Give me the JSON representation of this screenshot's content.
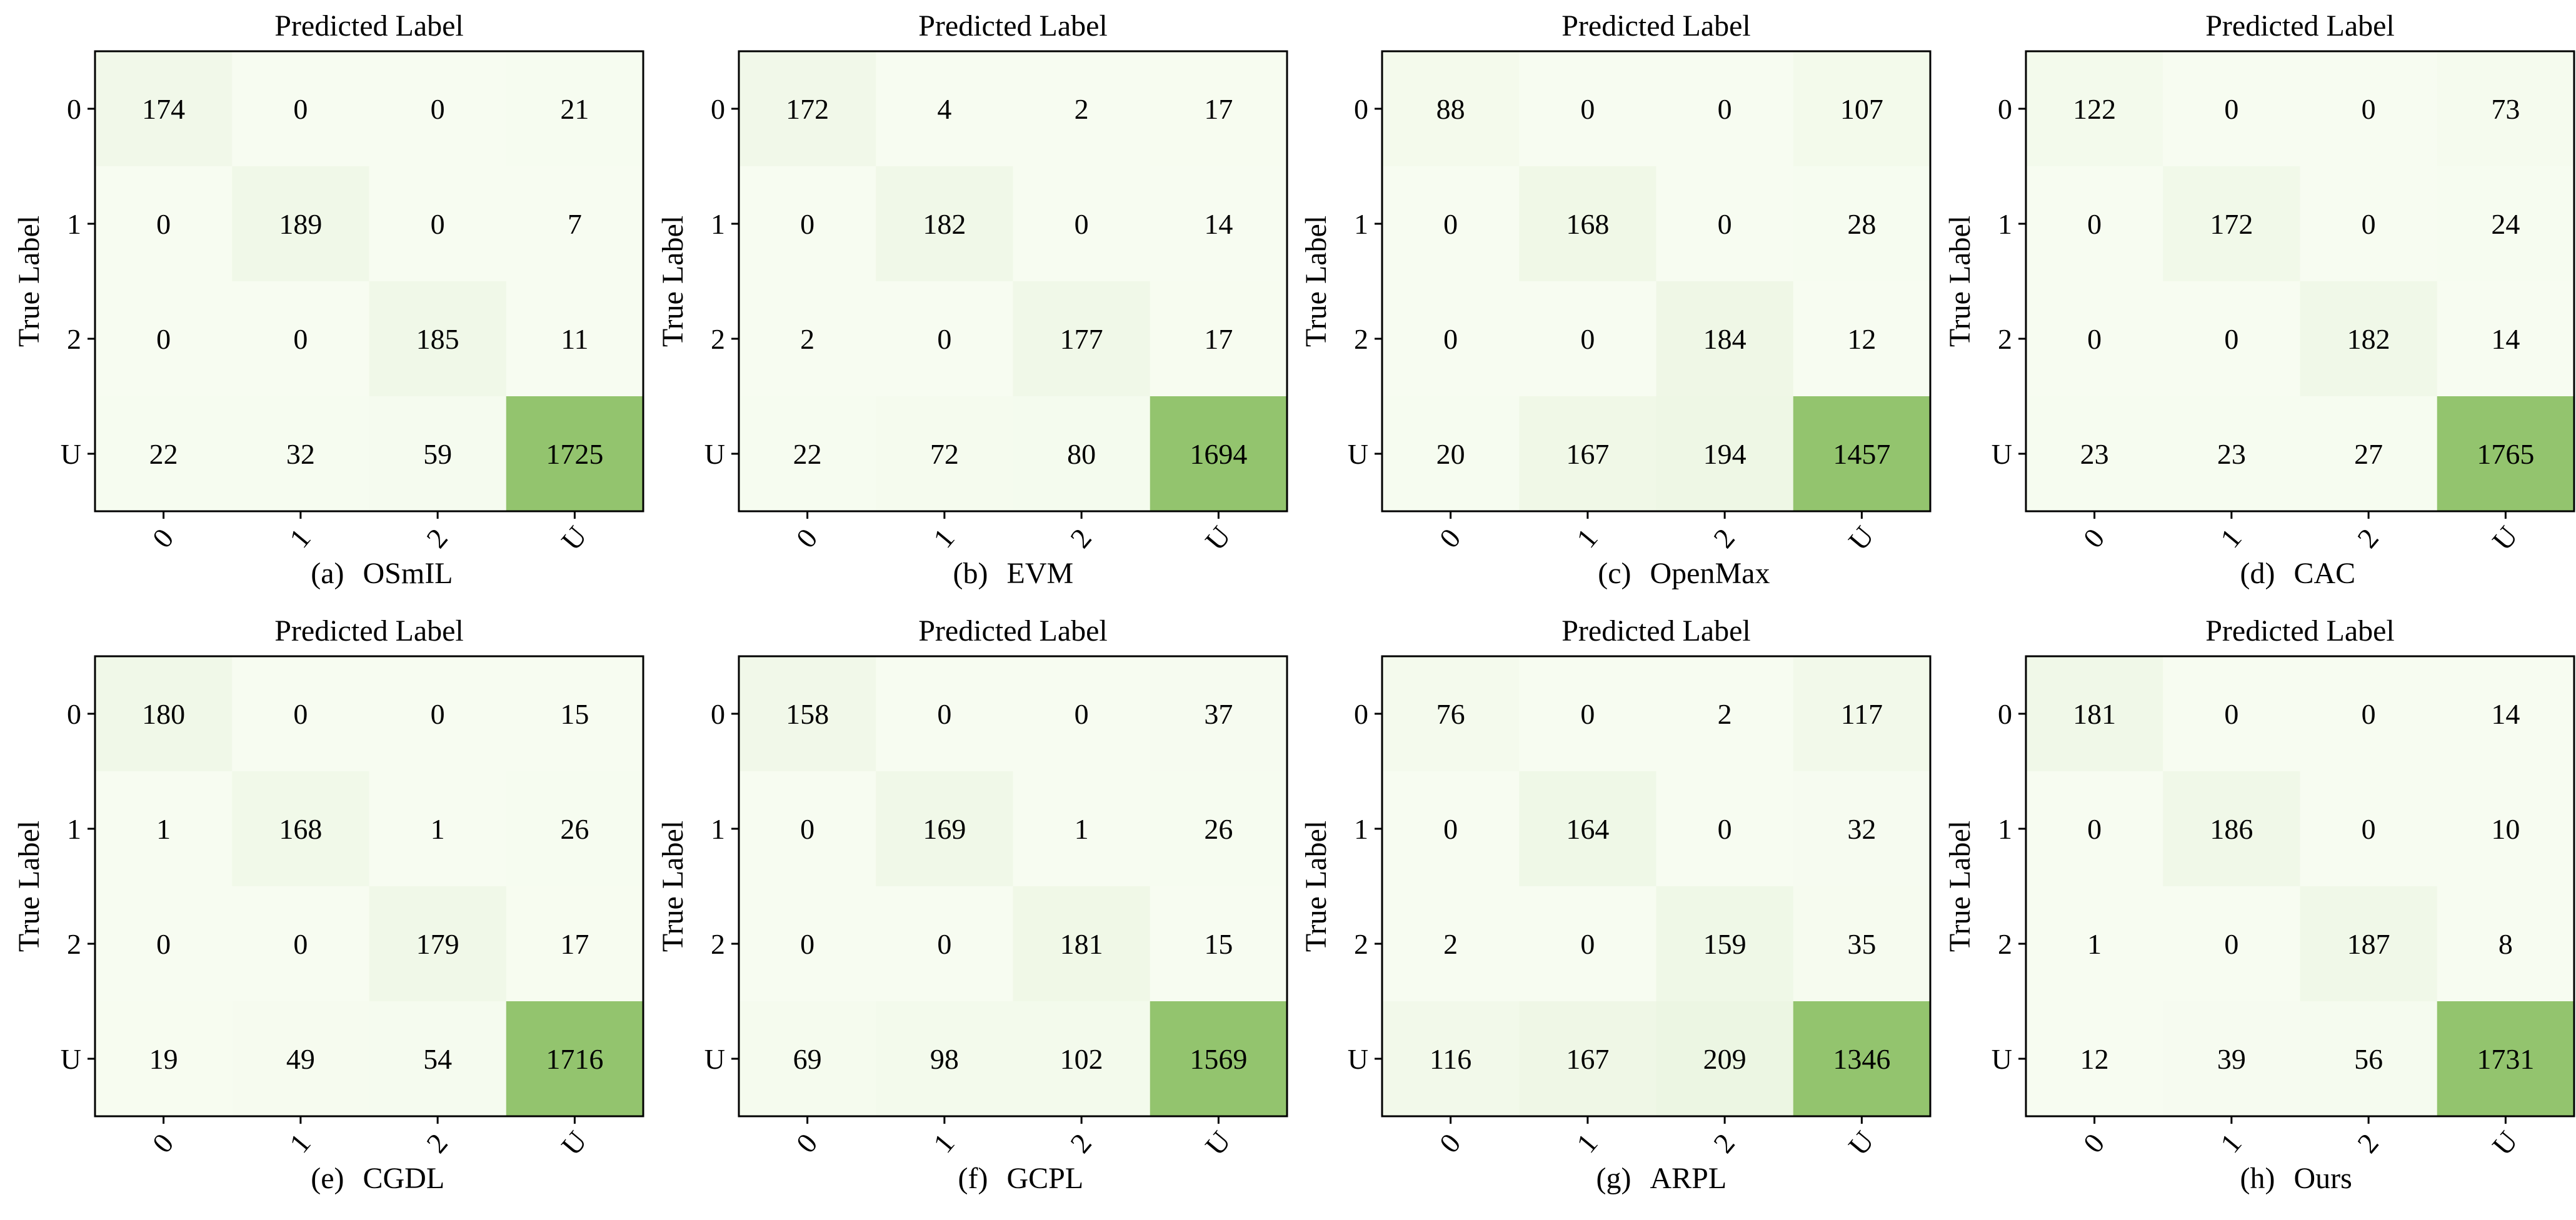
{
  "colors": {
    "low": "#f7fcf1",
    "high": "#93c46e",
    "frame": "#000000",
    "text": "#000000"
  },
  "chart_data": [
    {
      "type": "heatmap",
      "title": "Predicted Label",
      "xlabel": "Predicted Label",
      "ylabel": "True Label",
      "caption_letter": "(a)",
      "caption_name": "OSmIL",
      "x_categories": [
        "0",
        "1",
        "2",
        "U"
      ],
      "y_categories": [
        "0",
        "1",
        "2",
        "U"
      ],
      "values": [
        [
          174,
          0,
          0,
          21
        ],
        [
          0,
          189,
          0,
          7
        ],
        [
          0,
          0,
          185,
          11
        ],
        [
          22,
          32,
          59,
          1725
        ]
      ]
    },
    {
      "type": "heatmap",
      "title": "Predicted Label",
      "xlabel": "Predicted Label",
      "ylabel": "True Label",
      "caption_letter": "(b)",
      "caption_name": "EVM",
      "x_categories": [
        "0",
        "1",
        "2",
        "U"
      ],
      "y_categories": [
        "0",
        "1",
        "2",
        "U"
      ],
      "values": [
        [
          172,
          4,
          2,
          17
        ],
        [
          0,
          182,
          0,
          14
        ],
        [
          2,
          0,
          177,
          17
        ],
        [
          22,
          72,
          80,
          1694
        ]
      ]
    },
    {
      "type": "heatmap",
      "title": "Predicted Label",
      "xlabel": "Predicted Label",
      "ylabel": "True Label",
      "caption_letter": "(c)",
      "caption_name": "OpenMax",
      "x_categories": [
        "0",
        "1",
        "2",
        "U"
      ],
      "y_categories": [
        "0",
        "1",
        "2",
        "U"
      ],
      "values": [
        [
          88,
          0,
          0,
          107
        ],
        [
          0,
          168,
          0,
          28
        ],
        [
          0,
          0,
          184,
          12
        ],
        [
          20,
          167,
          194,
          1457
        ]
      ]
    },
    {
      "type": "heatmap",
      "title": "Predicted Label",
      "xlabel": "Predicted Label",
      "ylabel": "True Label",
      "caption_letter": "(d)",
      "caption_name": "CAC",
      "x_categories": [
        "0",
        "1",
        "2",
        "U"
      ],
      "y_categories": [
        "0",
        "1",
        "2",
        "U"
      ],
      "values": [
        [
          122,
          0,
          0,
          73
        ],
        [
          0,
          172,
          0,
          24
        ],
        [
          0,
          0,
          182,
          14
        ],
        [
          23,
          23,
          27,
          1765
        ]
      ]
    },
    {
      "type": "heatmap",
      "title": "Predicted Label",
      "xlabel": "Predicted Label",
      "ylabel": "True Label",
      "caption_letter": "(e)",
      "caption_name": "CGDL",
      "x_categories": [
        "0",
        "1",
        "2",
        "U"
      ],
      "y_categories": [
        "0",
        "1",
        "2",
        "U"
      ],
      "values": [
        [
          180,
          0,
          0,
          15
        ],
        [
          1,
          168,
          1,
          26
        ],
        [
          0,
          0,
          179,
          17
        ],
        [
          19,
          49,
          54,
          1716
        ]
      ]
    },
    {
      "type": "heatmap",
      "title": "Predicted Label",
      "xlabel": "Predicted Label",
      "ylabel": "True Label",
      "caption_letter": "(f)",
      "caption_name": "GCPL",
      "x_categories": [
        "0",
        "1",
        "2",
        "U"
      ],
      "y_categories": [
        "0",
        "1",
        "2",
        "U"
      ],
      "values": [
        [
          158,
          0,
          0,
          37
        ],
        [
          0,
          169,
          1,
          26
        ],
        [
          0,
          0,
          181,
          15
        ],
        [
          69,
          98,
          102,
          1569
        ]
      ]
    },
    {
      "type": "heatmap",
      "title": "Predicted Label",
      "xlabel": "Predicted Label",
      "ylabel": "True Label",
      "caption_letter": "(g)",
      "caption_name": "ARPL",
      "x_categories": [
        "0",
        "1",
        "2",
        "U"
      ],
      "y_categories": [
        "0",
        "1",
        "2",
        "U"
      ],
      "values": [
        [
          76,
          0,
          2,
          117
        ],
        [
          0,
          164,
          0,
          32
        ],
        [
          2,
          0,
          159,
          35
        ],
        [
          116,
          167,
          209,
          1346
        ]
      ]
    },
    {
      "type": "heatmap",
      "title": "Predicted Label",
      "xlabel": "Predicted Label",
      "ylabel": "True Label",
      "caption_letter": "(h)",
      "caption_name": "Ours",
      "x_categories": [
        "0",
        "1",
        "2",
        "U"
      ],
      "y_categories": [
        "0",
        "1",
        "2",
        "U"
      ],
      "values": [
        [
          181,
          0,
          0,
          14
        ],
        [
          0,
          186,
          0,
          10
        ],
        [
          1,
          0,
          187,
          8
        ],
        [
          12,
          39,
          56,
          1731
        ]
      ]
    }
  ]
}
